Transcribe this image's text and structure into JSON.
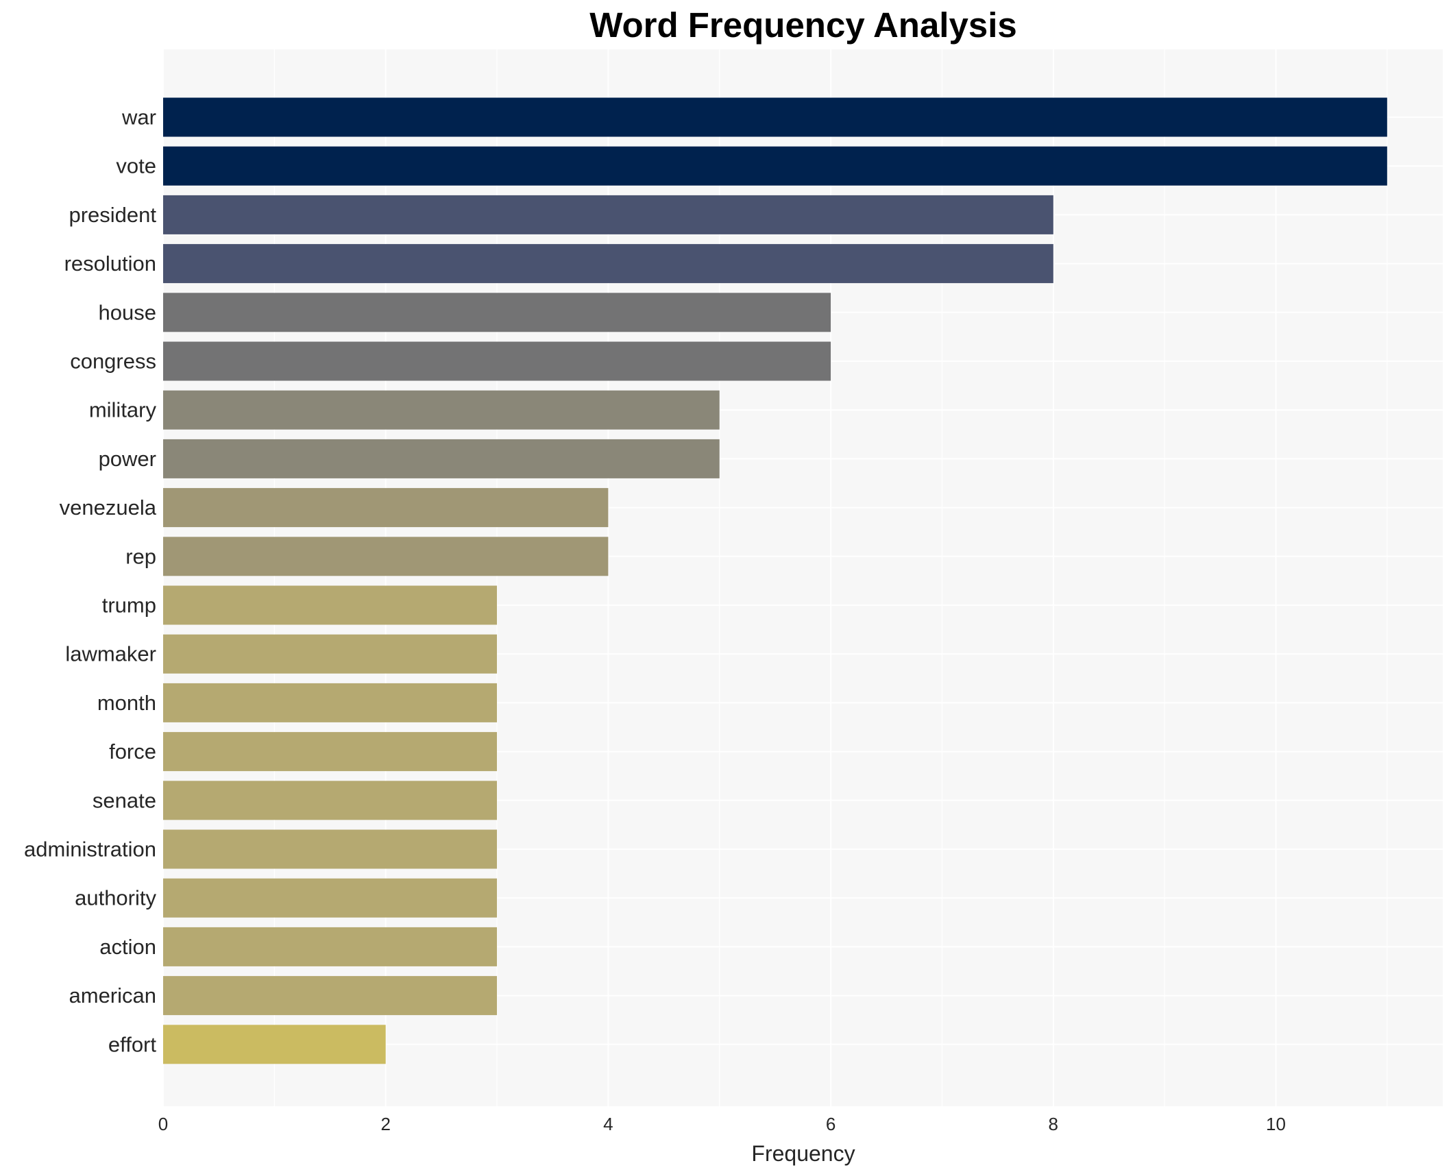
{
  "chart_data": {
    "type": "bar",
    "orientation": "horizontal",
    "title": "Word Frequency Analysis",
    "xlabel": "Frequency",
    "ylabel": "",
    "categories": [
      "war",
      "vote",
      "president",
      "resolution",
      "house",
      "congress",
      "military",
      "power",
      "venezuela",
      "rep",
      "trump",
      "lawmaker",
      "month",
      "force",
      "senate",
      "administration",
      "authority",
      "action",
      "american",
      "effort"
    ],
    "values": [
      11,
      11,
      8,
      8,
      6,
      6,
      5,
      5,
      4,
      4,
      3,
      3,
      3,
      3,
      3,
      3,
      3,
      3,
      3,
      2
    ],
    "colors": [
      "#00224e",
      "#00224e",
      "#4a5370",
      "#4a5370",
      "#737374",
      "#737374",
      "#8a8778",
      "#8a8778",
      "#a09775",
      "#a09775",
      "#b5a971",
      "#b5a971",
      "#b5a971",
      "#b5a971",
      "#b5a971",
      "#b5a971",
      "#b5a971",
      "#b5a971",
      "#b5a971",
      "#cbbb61"
    ],
    "xlim": [
      0,
      11.5
    ],
    "xticks": [
      0,
      2,
      4,
      6,
      8,
      10
    ],
    "grid": true,
    "background_color": "#f7f7f7",
    "grid_color": "#ffffff",
    "legend": "none"
  }
}
